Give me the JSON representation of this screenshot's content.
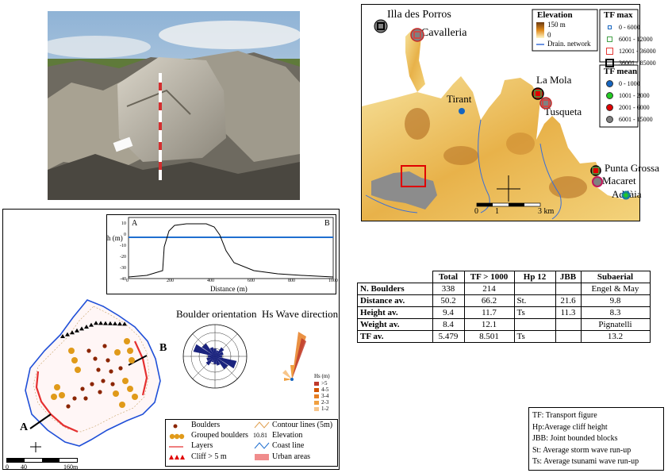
{
  "map_panel": {
    "places": [
      "Illa des Porros",
      "Cavalleria",
      "Tirant",
      "La Mola",
      "Tusqueta",
      "Punta Grossa",
      "Macaret",
      "Addàia"
    ],
    "elevation_legend": {
      "title": "Elevation",
      "max": "150 m",
      "min": "0",
      "drain": "Drain. network"
    },
    "tf_max_legend": {
      "title": "TF max",
      "items": [
        "0 - 6000",
        "6001 - 12000",
        "12001 - 36000",
        "36001 - 85000"
      ],
      "colors": [
        "#1565c0",
        "#43a047",
        "#e53935",
        "#000000"
      ]
    },
    "tf_mean_legend": {
      "title": "TF mean",
      "items": [
        "0 - 1000",
        "1001 - 2000",
        "2001 - 6000",
        "6001 - 15000"
      ],
      "colors": [
        "#1565c0",
        "#22cc22",
        "#e00000",
        "#808080"
      ]
    },
    "scale": {
      "start": "0",
      "mid": "1",
      "end": "3 km"
    }
  },
  "profile": {
    "label_a": "A",
    "label_b": "B",
    "ylabel": "h (m)",
    "xlabel": "Distance (m)",
    "yticks": [
      "10",
      "0",
      "-10",
      "-20",
      "-30",
      "-40"
    ],
    "xticks": [
      "0",
      "200",
      "400",
      "600",
      "800",
      "1000"
    ]
  },
  "orientation": {
    "boulder_title": "Boulder orientation",
    "wave_title": "Hs Wave direction",
    "hs_title": "Hs (m)",
    "hs_items": [
      ">5",
      "4-5",
      "3-4",
      "2-3",
      "1-2"
    ],
    "hs_colors": [
      "#c0392b",
      "#d35400",
      "#e67e22",
      "#f0a040",
      "#f7c58a"
    ]
  },
  "site_map": {
    "label_a": "A",
    "label_b": "B",
    "scale": [
      "0",
      "40",
      "160m"
    ],
    "legend": {
      "boulders": "Boulders",
      "grouped": "Grouped boulders",
      "layers": "Layers",
      "cliff": "Cliff > 5 m",
      "contour": "Contour lines (5m)",
      "elev_num": "10.81",
      "elevation": "Elevation",
      "coast": "Coast line",
      "urban": "Urban areas"
    }
  },
  "table": {
    "headers": [
      "",
      "Total",
      "TF > 1000",
      "Hp 12",
      "JBB",
      "Subaerial"
    ],
    "rows": [
      {
        "label": "N. Boulders",
        "total": "338",
        "tf": "214",
        "c4": "",
        "c5": "",
        "c6": "Engel & May"
      },
      {
        "label": "Distance av.",
        "total": "50.2",
        "tf": "66.2",
        "c4": "St.",
        "c5": "21.6",
        "c6": "9.8"
      },
      {
        "label": "Height av.",
        "total": "9.4",
        "tf": "11.7",
        "c4": "Ts",
        "c5": "11.3",
        "c6": "8.3"
      },
      {
        "label": "Weight av.",
        "total": "8.4",
        "tf": "12.1",
        "c4": "",
        "c5": "",
        "c6": "Pignatelli"
      },
      {
        "label": "TF av.",
        "total": "5.479",
        "tf": "8.501",
        "c4": "Ts",
        "c5": "",
        "c6": "13.2"
      }
    ]
  },
  "glossary": [
    "TF: Transport figure",
    "Hp:Average cliff height",
    "JBB: Joint bounded blocks",
    "St: Average storm wave run-up",
    "Ts: Average tsunami wave run-up"
  ]
}
